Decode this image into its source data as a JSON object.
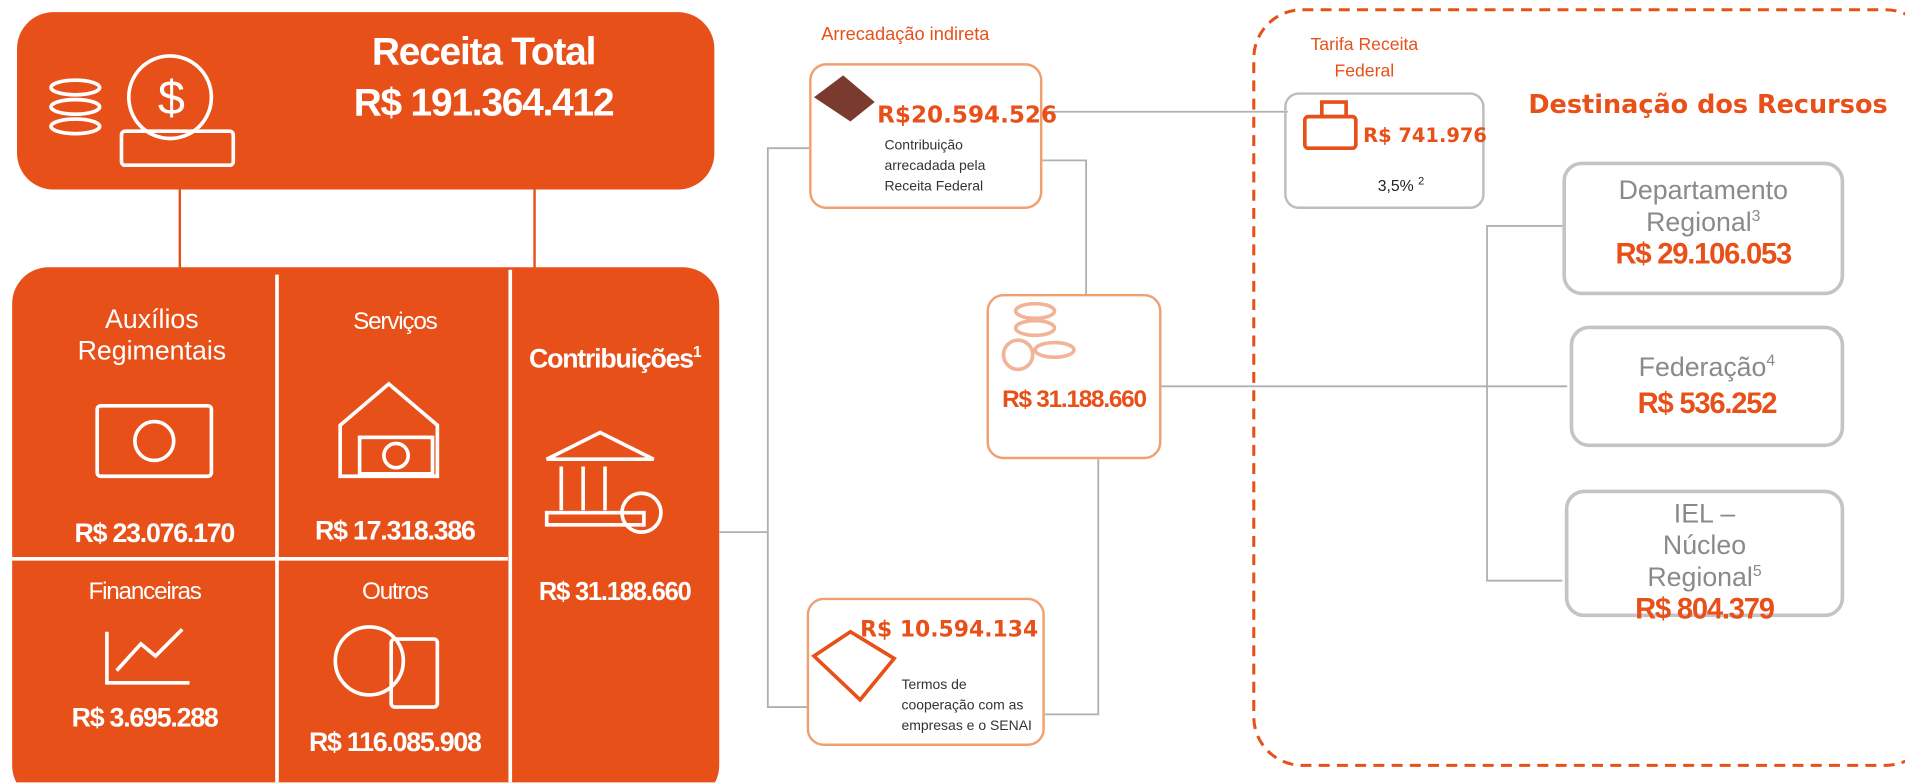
{
  "header": {
    "title": "Receita Total",
    "value": "R$ 191.364.412"
  },
  "categories": [
    {
      "label": "Auxílios Regimentais",
      "value": "R$ 23.076.170"
    },
    {
      "label": "Serviços",
      "value": "R$ 17.318.386"
    },
    {
      "label": "Financeiras",
      "value": "R$ 3.695.288"
    },
    {
      "label": "Outros",
      "value": "R$ 116.085.908"
    },
    {
      "label": "Contribuições",
      "note": "1",
      "value": "R$ 31.188.660"
    }
  ],
  "indirect": {
    "title": "Arrecadação indireta",
    "value": "R$20.594.526",
    "description": "Contribuição arrecadada pela Receita Federal"
  },
  "direct": {
    "value": "R$ 10.594.134",
    "description": "Termos de cooperação com as empresas e o SENAI"
  },
  "contributions_total": "R$ 31.188.660",
  "fee": {
    "title": "Tarifa Receita Federal",
    "value": "R$ 741.976",
    "rate": "3,5%",
    "note": "2"
  },
  "destination": {
    "title": "Destinação dos Recursos",
    "items": [
      {
        "label": "Departamento Regional",
        "note": "3",
        "value": "R$ 29.106.053"
      },
      {
        "label": "Federação",
        "note": "4",
        "value": "R$ 536.252"
      },
      {
        "label": "IEL – Núcleo Regional",
        "note": "5",
        "value": "R$ 804.379"
      }
    ]
  }
}
